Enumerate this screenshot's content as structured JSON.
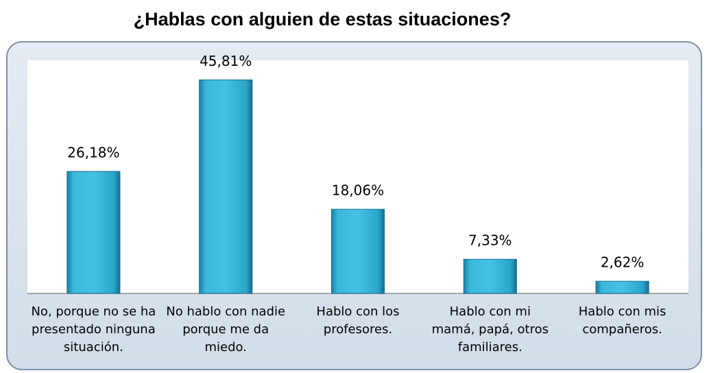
{
  "chart_data": {
    "type": "bar",
    "title": "¿Hablas con alguien de estas situaciones?",
    "categories": [
      "No, porque no se ha presentado ninguna situación.",
      "No hablo con nadie porque me da miedo.",
      "Hablo con los profesores.",
      "Hablo con mi mamá, papá, otros familiares.",
      "Hablo con mis compañeros."
    ],
    "values": [
      26.18,
      45.81,
      18.06,
      7.33,
      2.62
    ],
    "value_labels": [
      "26,18%",
      "45,81%",
      "18,06%",
      "7,33%",
      "2,62%"
    ],
    "color": "#31b0d5",
    "ylim": [
      0,
      50
    ]
  }
}
